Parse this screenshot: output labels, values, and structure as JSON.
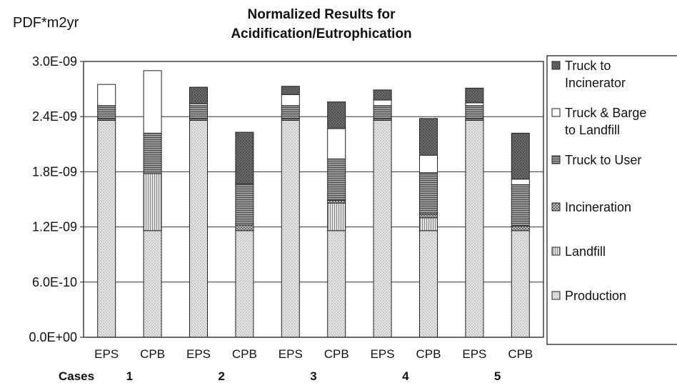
{
  "chart_data": {
    "type": "bar",
    "stacked": true,
    "title_lines": [
      "Normalized Results for",
      "Acidification/Eutrophication"
    ],
    "unit_label": "PDF*m2yr",
    "group_axis_label": "Cases",
    "groups": [
      "1",
      "2",
      "3",
      "4",
      "5"
    ],
    "categories": [
      "EPS",
      "CPB",
      "EPS",
      "CPB",
      "EPS",
      "CPB",
      "EPS",
      "CPB",
      "EPS",
      "CPB"
    ],
    "ylim": [
      0,
      3e-09
    ],
    "y_ticks": [
      0,
      6e-10,
      1.2e-09,
      1.8e-09,
      2.4e-09,
      3e-09
    ],
    "y_tick_labels": [
      "0.0E+00",
      "6.0E-10",
      "1.2E-09",
      "1.8E-09",
      "2.4E-09",
      "3.0E-09"
    ],
    "grid": true,
    "legend_position": "right",
    "series": [
      {
        "name": "Production",
        "fill": "#e2e2e2",
        "pattern": "dots",
        "values": [
          2.36e-09,
          1.16e-09,
          2.36e-09,
          1.16e-09,
          2.36e-09,
          1.16e-09,
          2.36e-09,
          1.16e-09,
          2.36e-09,
          1.16e-09
        ]
      },
      {
        "name": "Landfill",
        "fill": "#d7d7d7",
        "pattern": "vertical-lines",
        "values": [
          0,
          6.2e-10,
          0,
          0,
          0,
          3e-10,
          0,
          1.4e-10,
          0,
          0
        ]
      },
      {
        "name": "Incineration",
        "fill": "#b9b9b9",
        "pattern": "crosshatch",
        "values": [
          2e-11,
          0,
          2e-11,
          6e-11,
          2e-11,
          3e-11,
          2e-11,
          4e-11,
          2e-11,
          5e-11
        ]
      },
      {
        "name": "Truck to User",
        "fill": "#858585",
        "pattern": "horizontal-lines",
        "values": [
          1.4e-10,
          4.4e-10,
          1.4e-10,
          4.5e-10,
          1.4e-10,
          4.5e-10,
          1.4e-10,
          4.5e-10,
          1.4e-10,
          4.5e-10
        ]
      },
      {
        "name": "Truck & Barge to Landfill",
        "fill": "#ffffff",
        "pattern": "none",
        "values": [
          2.3e-10,
          6.8e-10,
          2e-11,
          0,
          1.2e-10,
          3.3e-10,
          6e-11,
          1.9e-10,
          3e-11,
          6e-11
        ]
      },
      {
        "name": "Truck to Incinerator",
        "fill": "#5b5b5b",
        "pattern": "dots-dark",
        "values": [
          0,
          0,
          1.8e-10,
          5.6e-10,
          9e-11,
          2.9e-10,
          1.1e-10,
          4e-10,
          1.6e-10,
          5e-10
        ]
      }
    ],
    "legend_order": [
      "Truck to Incinerator",
      "Truck & Barge to Landfill",
      "Truck to User",
      "Incineration",
      "Landfill",
      "Production"
    ],
    "legend_lines": {
      "Truck to Incinerator": [
        "Truck to",
        "Incinerator"
      ],
      "Truck & Barge to Landfill": [
        "Truck & Barge",
        "to Landfill"
      ],
      "Truck to User": [
        "Truck to User"
      ],
      "Incineration": [
        "Incineration"
      ],
      "Landfill": [
        "Landfill"
      ],
      "Production": [
        "Production"
      ]
    }
  }
}
